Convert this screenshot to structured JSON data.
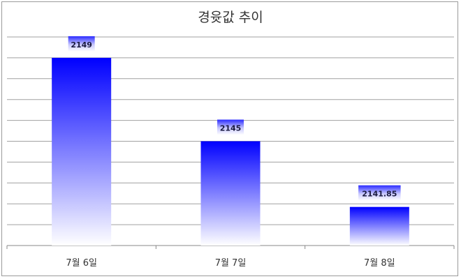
{
  "chart_data": {
    "type": "bar",
    "title": "경윳값 추이",
    "categories": [
      "7월 6일",
      "7월 7일",
      "7월 8일"
    ],
    "values": [
      2149,
      2145,
      2141.85
    ],
    "data_labels": [
      "2149",
      "2145",
      "2141.85"
    ],
    "xlabel": "",
    "ylabel": "",
    "ylim": [
      2140,
      2150
    ],
    "ytick_step": 1,
    "y_tick_labels_shown": false,
    "grid": true,
    "legend": "none",
    "bar_color": "#0000ff",
    "bar_gradient_end": "#ffffff"
  }
}
